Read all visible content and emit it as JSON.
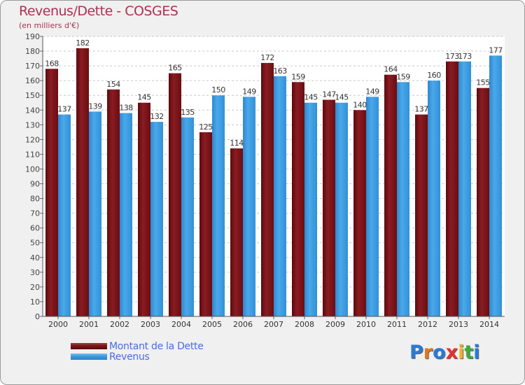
{
  "chart_data": {
    "type": "bar",
    "title": "Revenus/Dette - COSGES",
    "subtitle": "(en milliers d'€)",
    "categories": [
      "2000",
      "2001",
      "2002",
      "2003",
      "2004",
      "2005",
      "2006",
      "2007",
      "2008",
      "2009",
      "2010",
      "2011",
      "2012",
      "2013",
      "2014"
    ],
    "series": [
      {
        "name": "Montant de la Dette",
        "color": "#7a1418",
        "values": [
          168,
          182,
          154,
          145,
          165,
          125,
          114,
          172,
          159,
          147,
          140,
          164,
          137,
          173,
          155
        ]
      },
      {
        "name": "Revenus",
        "color": "#3a9ae0",
        "values": [
          137,
          139,
          138,
          132,
          135,
          150,
          149,
          163,
          145,
          145,
          149,
          159,
          160,
          173,
          177
        ]
      }
    ],
    "ylim": [
      0,
      190
    ],
    "yticks": [
      0,
      10,
      20,
      30,
      40,
      50,
      60,
      70,
      80,
      90,
      100,
      110,
      120,
      130,
      140,
      150,
      160,
      170,
      180,
      190
    ],
    "grid": true,
    "xlabel": "",
    "ylabel": ""
  },
  "legend": {
    "items": [
      {
        "label": "Montant de la Dette",
        "color": "#7a1418"
      },
      {
        "label": "Revenus",
        "color": "#3a9ae0"
      }
    ]
  },
  "logo": {
    "letters": [
      "P",
      "r",
      "o",
      "x",
      "i",
      "t",
      "i"
    ],
    "colors": [
      "#2a7ad8",
      "#e07820",
      "#2a7ad8",
      "#e83030",
      "#f0b020",
      "#40a840",
      "#2a7ad8"
    ]
  }
}
